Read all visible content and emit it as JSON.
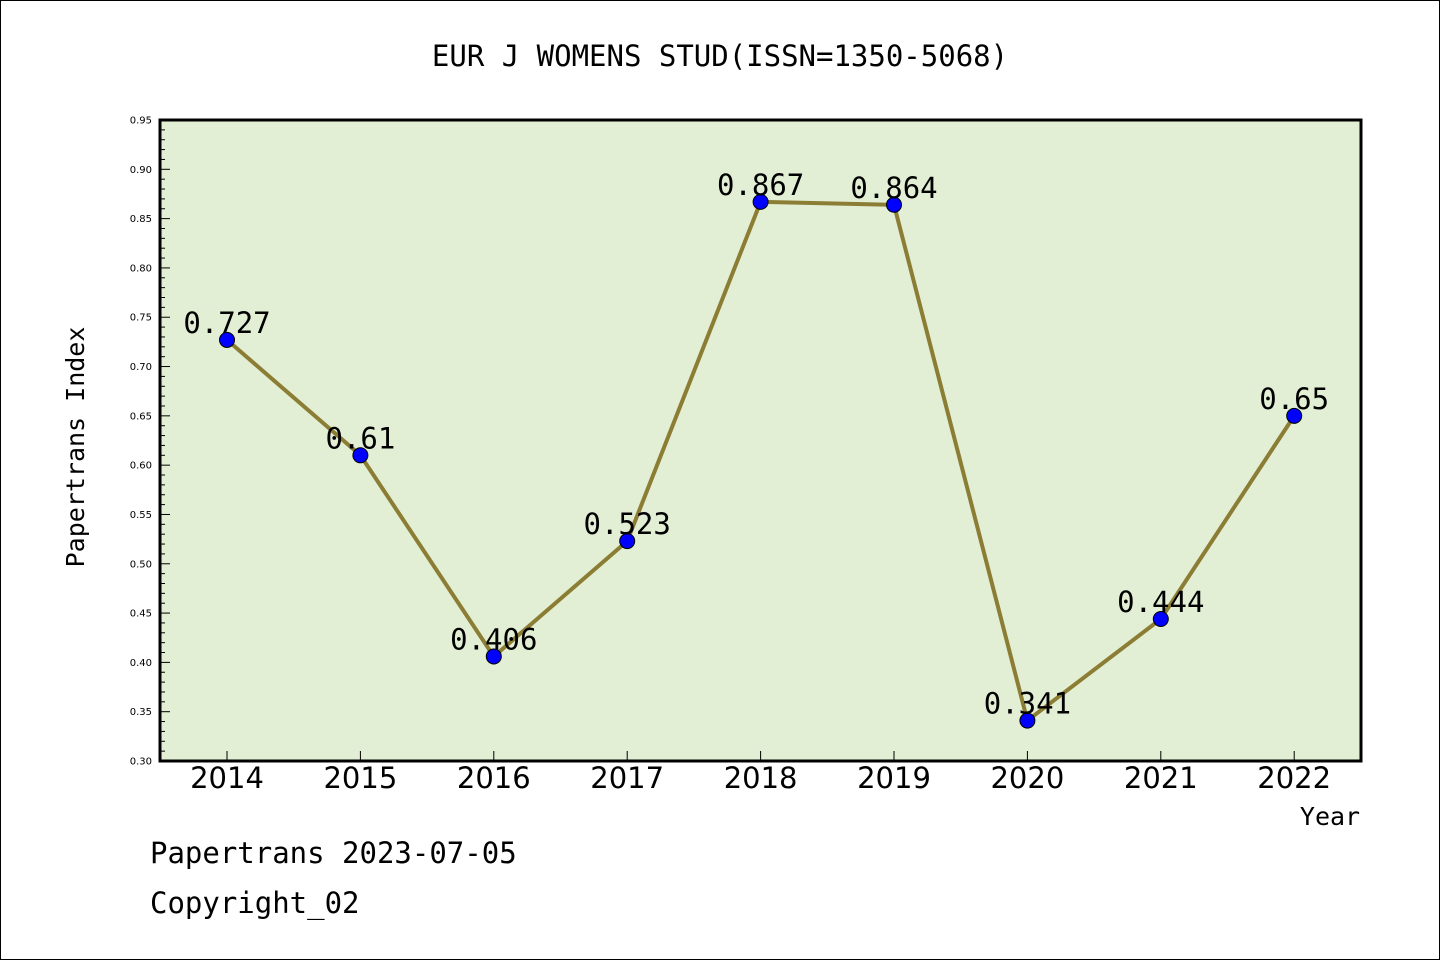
{
  "chart_data": {
    "type": "line",
    "title": "EUR J WOMENS STUD(ISSN=1350-5068)",
    "xlabel": "Year",
    "ylabel": "Papertrans Index",
    "categories": [
      "2014",
      "2015",
      "2016",
      "2017",
      "2018",
      "2019",
      "2020",
      "2021",
      "2022"
    ],
    "values": [
      0.727,
      0.61,
      0.406,
      0.523,
      0.867,
      0.864,
      0.341,
      0.444,
      0.65
    ],
    "value_labels": [
      "0.727",
      "0.61",
      "0.406",
      "0.523",
      "0.867",
      "0.864",
      "0.341",
      "0.444",
      "0.65"
    ],
    "ylim": [
      0.3,
      0.95
    ],
    "yticks": [
      "0.30",
      "0.35",
      "0.40",
      "0.45",
      "0.50",
      "0.55",
      "0.60",
      "0.65",
      "0.70",
      "0.75",
      "0.80",
      "0.85",
      "0.90",
      "0.95"
    ],
    "grid": false,
    "colors": {
      "plot_background": "#e2efd5",
      "line": "#8b7d33",
      "marker": "#0000ff"
    }
  },
  "footer": {
    "date_text": "Papertrans 2023-07-05",
    "copyright_text": "Copyright_02"
  }
}
